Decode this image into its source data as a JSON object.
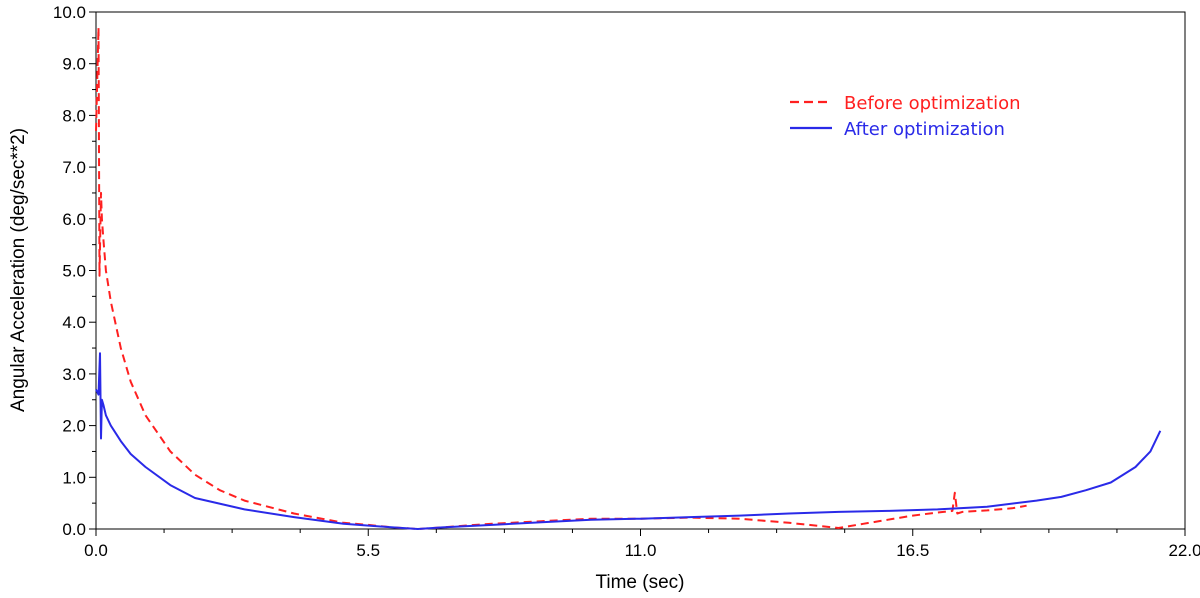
{
  "chart_data": {
    "type": "line",
    "title": "",
    "xlabel": "Time (sec)",
    "ylabel": "Angular Acceleration (deg/sec**2)",
    "xlim": [
      0.0,
      22.0
    ],
    "ylim": [
      0.0,
      10.0
    ],
    "x_ticks": [
      "0.0",
      "5.5",
      "11.0",
      "16.5",
      "22.0"
    ],
    "y_ticks": [
      "0.0",
      "1.0",
      "2.0",
      "3.0",
      "4.0",
      "5.0",
      "6.0",
      "7.0",
      "8.0",
      "9.0",
      "10.0"
    ],
    "grid": false,
    "legend_position": "top-right",
    "series": [
      {
        "name": "Before optimization",
        "color": "#ff2020",
        "style": "dashed",
        "x": [
          0.0,
          0.02,
          0.05,
          0.07,
          0.1,
          0.12,
          0.15,
          0.2,
          0.3,
          0.5,
          0.7,
          1.0,
          1.5,
          2.0,
          2.5,
          3.0,
          4.0,
          5.0,
          5.5,
          6.0,
          6.5,
          7.0,
          7.5,
          8.0,
          9.0,
          10.0,
          11.0,
          12.0,
          13.0,
          14.0,
          14.5,
          15.0,
          15.5,
          16.0,
          16.5,
          17.0,
          17.3,
          17.35,
          17.4,
          17.5,
          18.0,
          18.5,
          18.8
        ],
        "y": [
          7.7,
          8.5,
          9.7,
          4.9,
          6.5,
          6.0,
          5.6,
          5.0,
          4.4,
          3.5,
          2.85,
          2.2,
          1.5,
          1.05,
          0.75,
          0.55,
          0.3,
          0.12,
          0.08,
          0.03,
          0.0,
          0.03,
          0.07,
          0.1,
          0.15,
          0.2,
          0.2,
          0.22,
          0.2,
          0.12,
          0.07,
          0.02,
          0.1,
          0.18,
          0.26,
          0.32,
          0.35,
          0.7,
          0.3,
          0.33,
          0.36,
          0.4,
          0.45
        ]
      },
      {
        "name": "After optimization",
        "color": "#2a2ae8",
        "style": "solid",
        "x": [
          0.0,
          0.05,
          0.08,
          0.1,
          0.12,
          0.15,
          0.2,
          0.3,
          0.5,
          0.7,
          1.0,
          1.5,
          2.0,
          3.0,
          4.0,
          5.0,
          6.0,
          6.5,
          7.0,
          8.0,
          9.0,
          10.0,
          11.0,
          12.0,
          13.0,
          14.0,
          15.0,
          16.0,
          17.0,
          18.0,
          19.0,
          19.5,
          20.0,
          20.5,
          21.0,
          21.3,
          21.5
        ],
        "y": [
          2.7,
          2.6,
          3.4,
          1.75,
          2.5,
          2.4,
          2.2,
          2.0,
          1.7,
          1.45,
          1.2,
          0.85,
          0.6,
          0.38,
          0.23,
          0.1,
          0.03,
          0.0,
          0.03,
          0.08,
          0.13,
          0.18,
          0.2,
          0.23,
          0.26,
          0.3,
          0.33,
          0.35,
          0.38,
          0.43,
          0.55,
          0.62,
          0.75,
          0.9,
          1.2,
          1.5,
          1.9
        ]
      }
    ]
  }
}
